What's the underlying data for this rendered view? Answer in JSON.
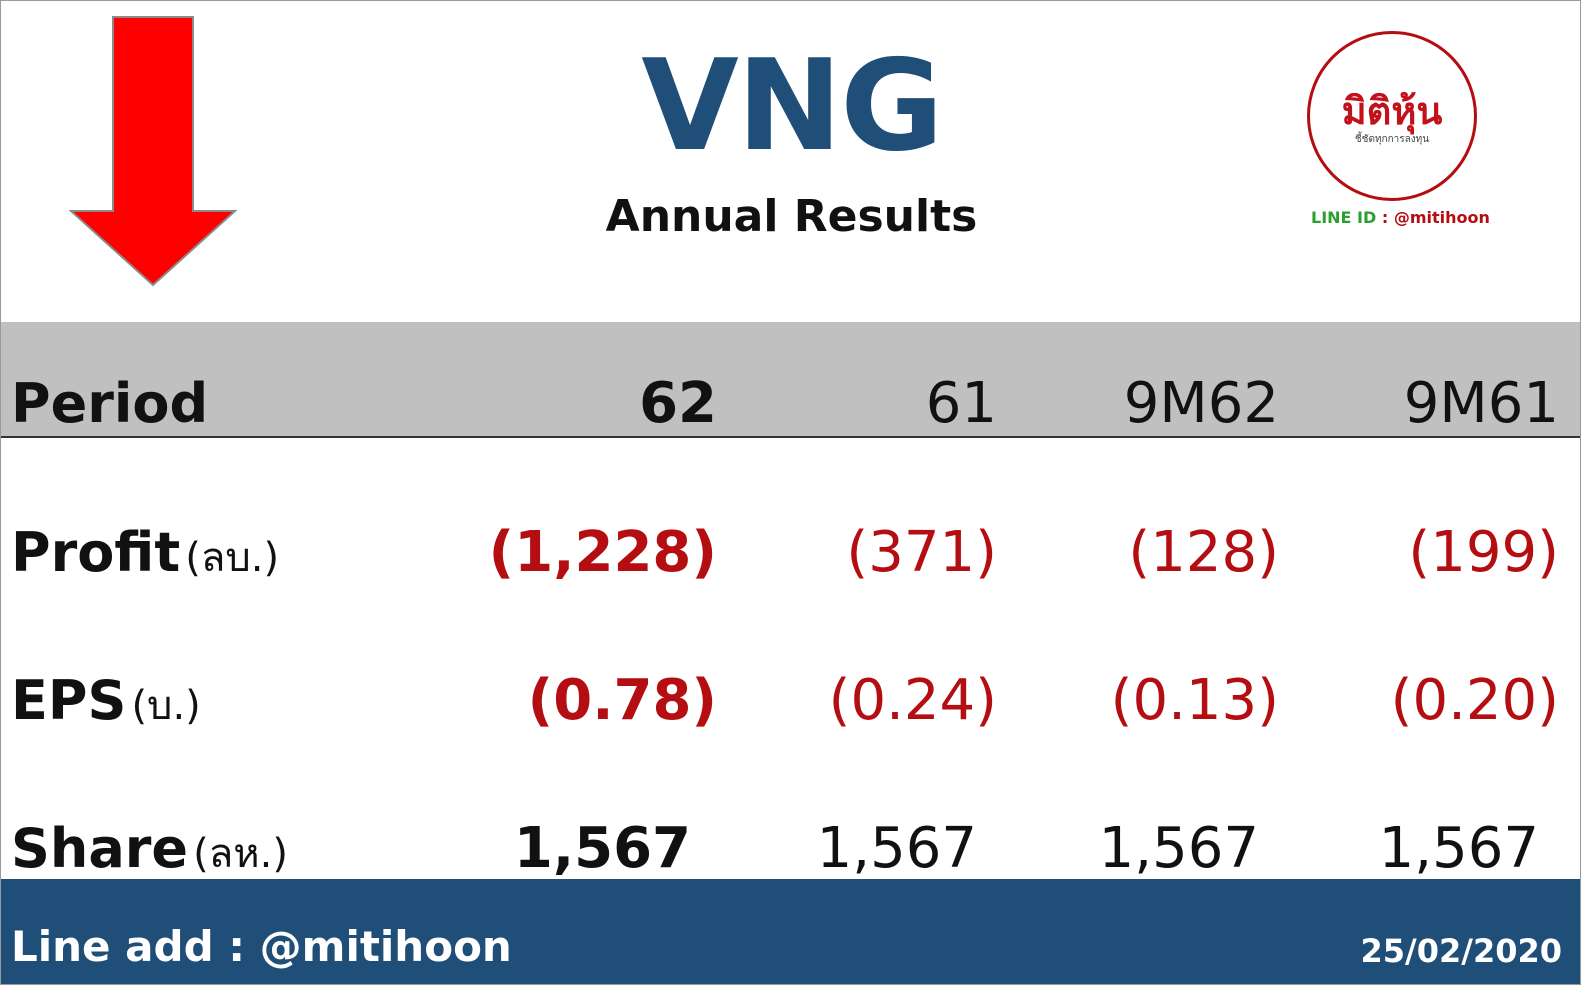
{
  "header": {
    "ticker": "VNG",
    "subtitle": "Annual Results",
    "trend_icon": "down-arrow-icon",
    "trend_color": "#ff0000"
  },
  "logo": {
    "word": "มิติหุ้น",
    "tagline": "ชี้ชัดทุกการลงทุน",
    "line_id_label": "LINE ID",
    "line_id_value": ": @mitihoon"
  },
  "table": {
    "period_label": "Period",
    "periods": [
      "62",
      "61",
      "9M62",
      "9M61"
    ],
    "rows": [
      {
        "label": "Profit",
        "unit": "(ลบ.)",
        "values": [
          "(1,228)",
          "(371)",
          "(128)",
          "(199)"
        ]
      },
      {
        "label": "EPS",
        "unit": "(บ.)",
        "values": [
          "(0.78)",
          "(0.24)",
          "(0.13)",
          "(0.20)"
        ]
      },
      {
        "label": "Share",
        "unit": "(ลห.)",
        "values": [
          "1,567",
          "1,567",
          "1,567",
          "1,567"
        ]
      }
    ]
  },
  "footer": {
    "line_add": "Line add : @mitihoon",
    "date": "25/02/2020"
  },
  "colors": {
    "brand_blue": "#1f4e79",
    "negative_red": "#b40d12",
    "header_band": "#c0c0c0"
  }
}
